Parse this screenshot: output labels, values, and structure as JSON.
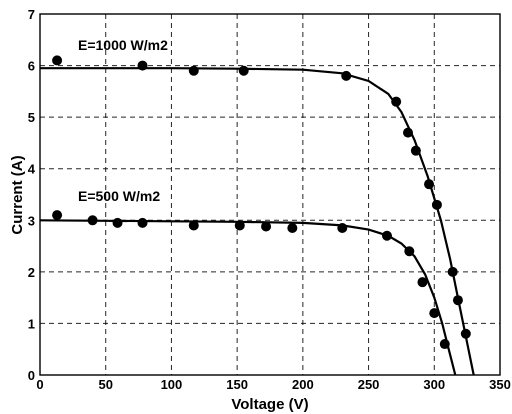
{
  "chart_data": {
    "type": "scatter",
    "title": "",
    "xlabel": "Voltage (V)",
    "ylabel": "Current (A)",
    "xlim": [
      0,
      350
    ],
    "ylim": [
      0,
      7
    ],
    "xticks": [
      0,
      50,
      100,
      150,
      200,
      250,
      300,
      350
    ],
    "yticks": [
      0,
      1,
      2,
      3,
      4,
      5,
      6,
      7
    ],
    "grid": true,
    "annotations": [
      "E=1000 W/m2",
      "E=500 W/m2"
    ],
    "series": [
      {
        "points": [
          [
            13,
            6.1
          ],
          [
            78,
            6.0
          ],
          [
            117,
            5.9
          ],
          [
            155,
            5.9
          ],
          [
            233,
            5.8
          ],
          [
            271,
            5.3
          ],
          [
            280,
            4.7
          ],
          [
            286,
            4.35
          ],
          [
            296,
            3.7
          ],
          [
            302,
            3.3
          ],
          [
            314,
            2.0
          ],
          [
            318,
            1.45
          ],
          [
            324,
            0.8
          ]
        ],
        "curve": [
          [
            0,
            5.95
          ],
          [
            50,
            5.95
          ],
          [
            100,
            5.95
          ],
          [
            150,
            5.94
          ],
          [
            200,
            5.92
          ],
          [
            230,
            5.85
          ],
          [
            250,
            5.7
          ],
          [
            265,
            5.45
          ],
          [
            275,
            5.1
          ],
          [
            285,
            4.55
          ],
          [
            295,
            3.85
          ],
          [
            305,
            3.0
          ],
          [
            312,
            2.25
          ],
          [
            318,
            1.5
          ],
          [
            324,
            0.75
          ],
          [
            330,
            0.0
          ]
        ]
      },
      {
        "points": [
          [
            13,
            3.1
          ],
          [
            40,
            3.0
          ],
          [
            59,
            2.95
          ],
          [
            78,
            2.95
          ],
          [
            117,
            2.9
          ],
          [
            152,
            2.9
          ],
          [
            172,
            2.88
          ],
          [
            192,
            2.85
          ],
          [
            230,
            2.85
          ],
          [
            264,
            2.7
          ],
          [
            281,
            2.4
          ],
          [
            291,
            1.8
          ],
          [
            300,
            1.2
          ],
          [
            308,
            0.6
          ]
        ],
        "curve": [
          [
            0,
            3.0
          ],
          [
            50,
            2.99
          ],
          [
            100,
            2.98
          ],
          [
            150,
            2.97
          ],
          [
            200,
            2.95
          ],
          [
            230,
            2.9
          ],
          [
            250,
            2.82
          ],
          [
            265,
            2.7
          ],
          [
            275,
            2.55
          ],
          [
            285,
            2.3
          ],
          [
            293,
            1.95
          ],
          [
            300,
            1.5
          ],
          [
            306,
            1.0
          ],
          [
            311,
            0.5
          ],
          [
            316,
            0.0
          ]
        ]
      }
    ]
  }
}
